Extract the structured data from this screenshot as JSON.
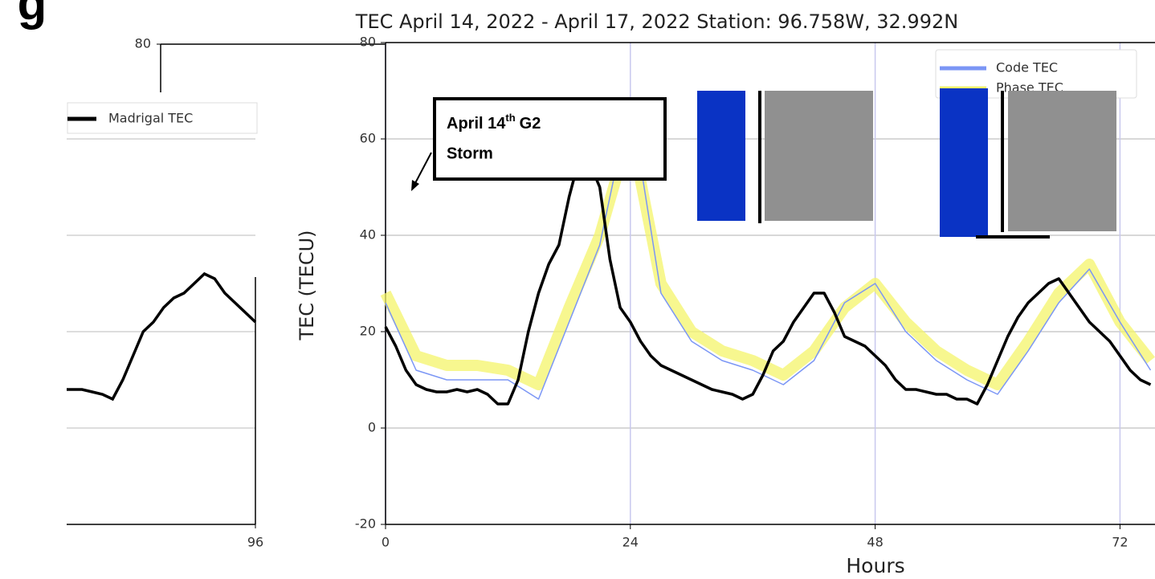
{
  "heading_fragment": "g",
  "chart_data": [
    {
      "type": "line",
      "x": [
        77.5,
        79,
        80,
        81,
        82,
        83,
        84,
        85,
        86,
        87,
        88,
        89,
        90,
        91,
        92,
        93,
        94,
        95,
        96
      ],
      "series": [
        {
          "name": "Madrigal TEC",
          "color": "#000000",
          "values": [
            8,
            8,
            7.5,
            7,
            6,
            10,
            15,
            20,
            22,
            25,
            27,
            28,
            30,
            32,
            31,
            28,
            26,
            24,
            22
          ]
        }
      ],
      "xlim": [
        77.5,
        96
      ],
      "ylim": [
        -20,
        80
      ],
      "xticks": [
        96
      ],
      "yticks": [
        80
      ]
    },
    {
      "type": "line",
      "title": "TEC April 14, 2022 - April 17, 2022  Station: 96.758W, 32.992N",
      "xlabel": "Hours",
      "ylabel": "TEC (TECU)",
      "x": [
        0,
        1,
        2,
        3,
        4,
        5,
        6,
        7,
        8,
        9,
        10,
        11,
        12,
        13,
        14,
        15,
        16,
        17,
        18,
        19,
        20,
        21,
        22,
        23,
        24,
        25,
        26,
        27,
        28,
        29,
        30,
        31,
        32,
        33,
        34,
        35,
        36,
        37,
        38,
        39,
        40,
        41,
        42,
        43,
        44,
        45,
        46,
        47,
        48,
        49,
        50,
        51,
        52,
        53,
        54,
        55,
        56,
        57,
        58,
        59,
        60,
        61,
        62,
        63,
        64,
        65,
        66,
        67,
        68,
        69,
        70,
        71,
        72,
        73,
        74,
        75
      ],
      "series": [
        {
          "name": "Code TEC",
          "color": "#7b96f5",
          "x": [
            0,
            3,
            6,
            9,
            12,
            15,
            18,
            21,
            24,
            27,
            30,
            33,
            36,
            39,
            42,
            45,
            48,
            51,
            54,
            57,
            60,
            63,
            66,
            69,
            72,
            75
          ],
          "values": [
            26,
            12,
            10,
            10,
            10,
            6,
            22,
            38,
            68,
            28,
            18,
            14,
            12,
            9,
            14,
            26,
            30,
            20,
            14,
            10,
            7,
            16,
            26,
            33,
            22,
            12
          ]
        },
        {
          "name": "Phase TEC",
          "color": "#f4f46a",
          "x": [
            0,
            3,
            6,
            9,
            12,
            15,
            18,
            21,
            24,
            27,
            30,
            33,
            36,
            39,
            42,
            45,
            48,
            51,
            54,
            57,
            60,
            63,
            66,
            69,
            72,
            75
          ],
          "values": [
            28,
            15,
            13,
            13,
            12,
            9,
            25,
            40,
            62,
            30,
            20,
            16,
            14,
            11,
            16,
            25,
            30,
            22,
            16,
            12,
            9,
            18,
            28,
            34,
            22,
            14
          ]
        },
        {
          "name": "Madrigal TEC",
          "color": "#000000",
          "values": [
            21,
            17,
            12,
            9,
            8,
            7.5,
            7.5,
            8,
            7.5,
            8,
            7,
            5,
            5,
            10,
            20,
            28,
            34,
            38,
            48,
            56,
            55,
            50,
            35,
            25,
            22,
            18,
            15,
            13,
            12,
            11,
            10,
            9,
            8,
            7.5,
            7,
            6,
            7,
            11,
            16,
            18,
            22,
            25,
            28,
            28,
            24,
            19,
            18,
            17,
            15,
            13,
            10,
            8,
            8,
            7.5,
            7,
            7,
            6,
            6,
            5,
            9,
            14,
            19,
            23,
            26,
            28,
            30,
            31,
            28,
            25,
            22,
            20,
            18,
            15,
            12,
            10,
            9
          ]
        }
      ],
      "xlim": [
        0,
        75
      ],
      "ylim": [
        -20,
        80
      ],
      "xticks": [
        0,
        24,
        48,
        72
      ],
      "yticks": [
        -20,
        0,
        20,
        40,
        60,
        80
      ],
      "grid": true,
      "legend": "upper right",
      "annotation": {
        "date": "April 14",
        "suffix": "th",
        "event": "G2",
        "line2": "Storm"
      }
    }
  ]
}
